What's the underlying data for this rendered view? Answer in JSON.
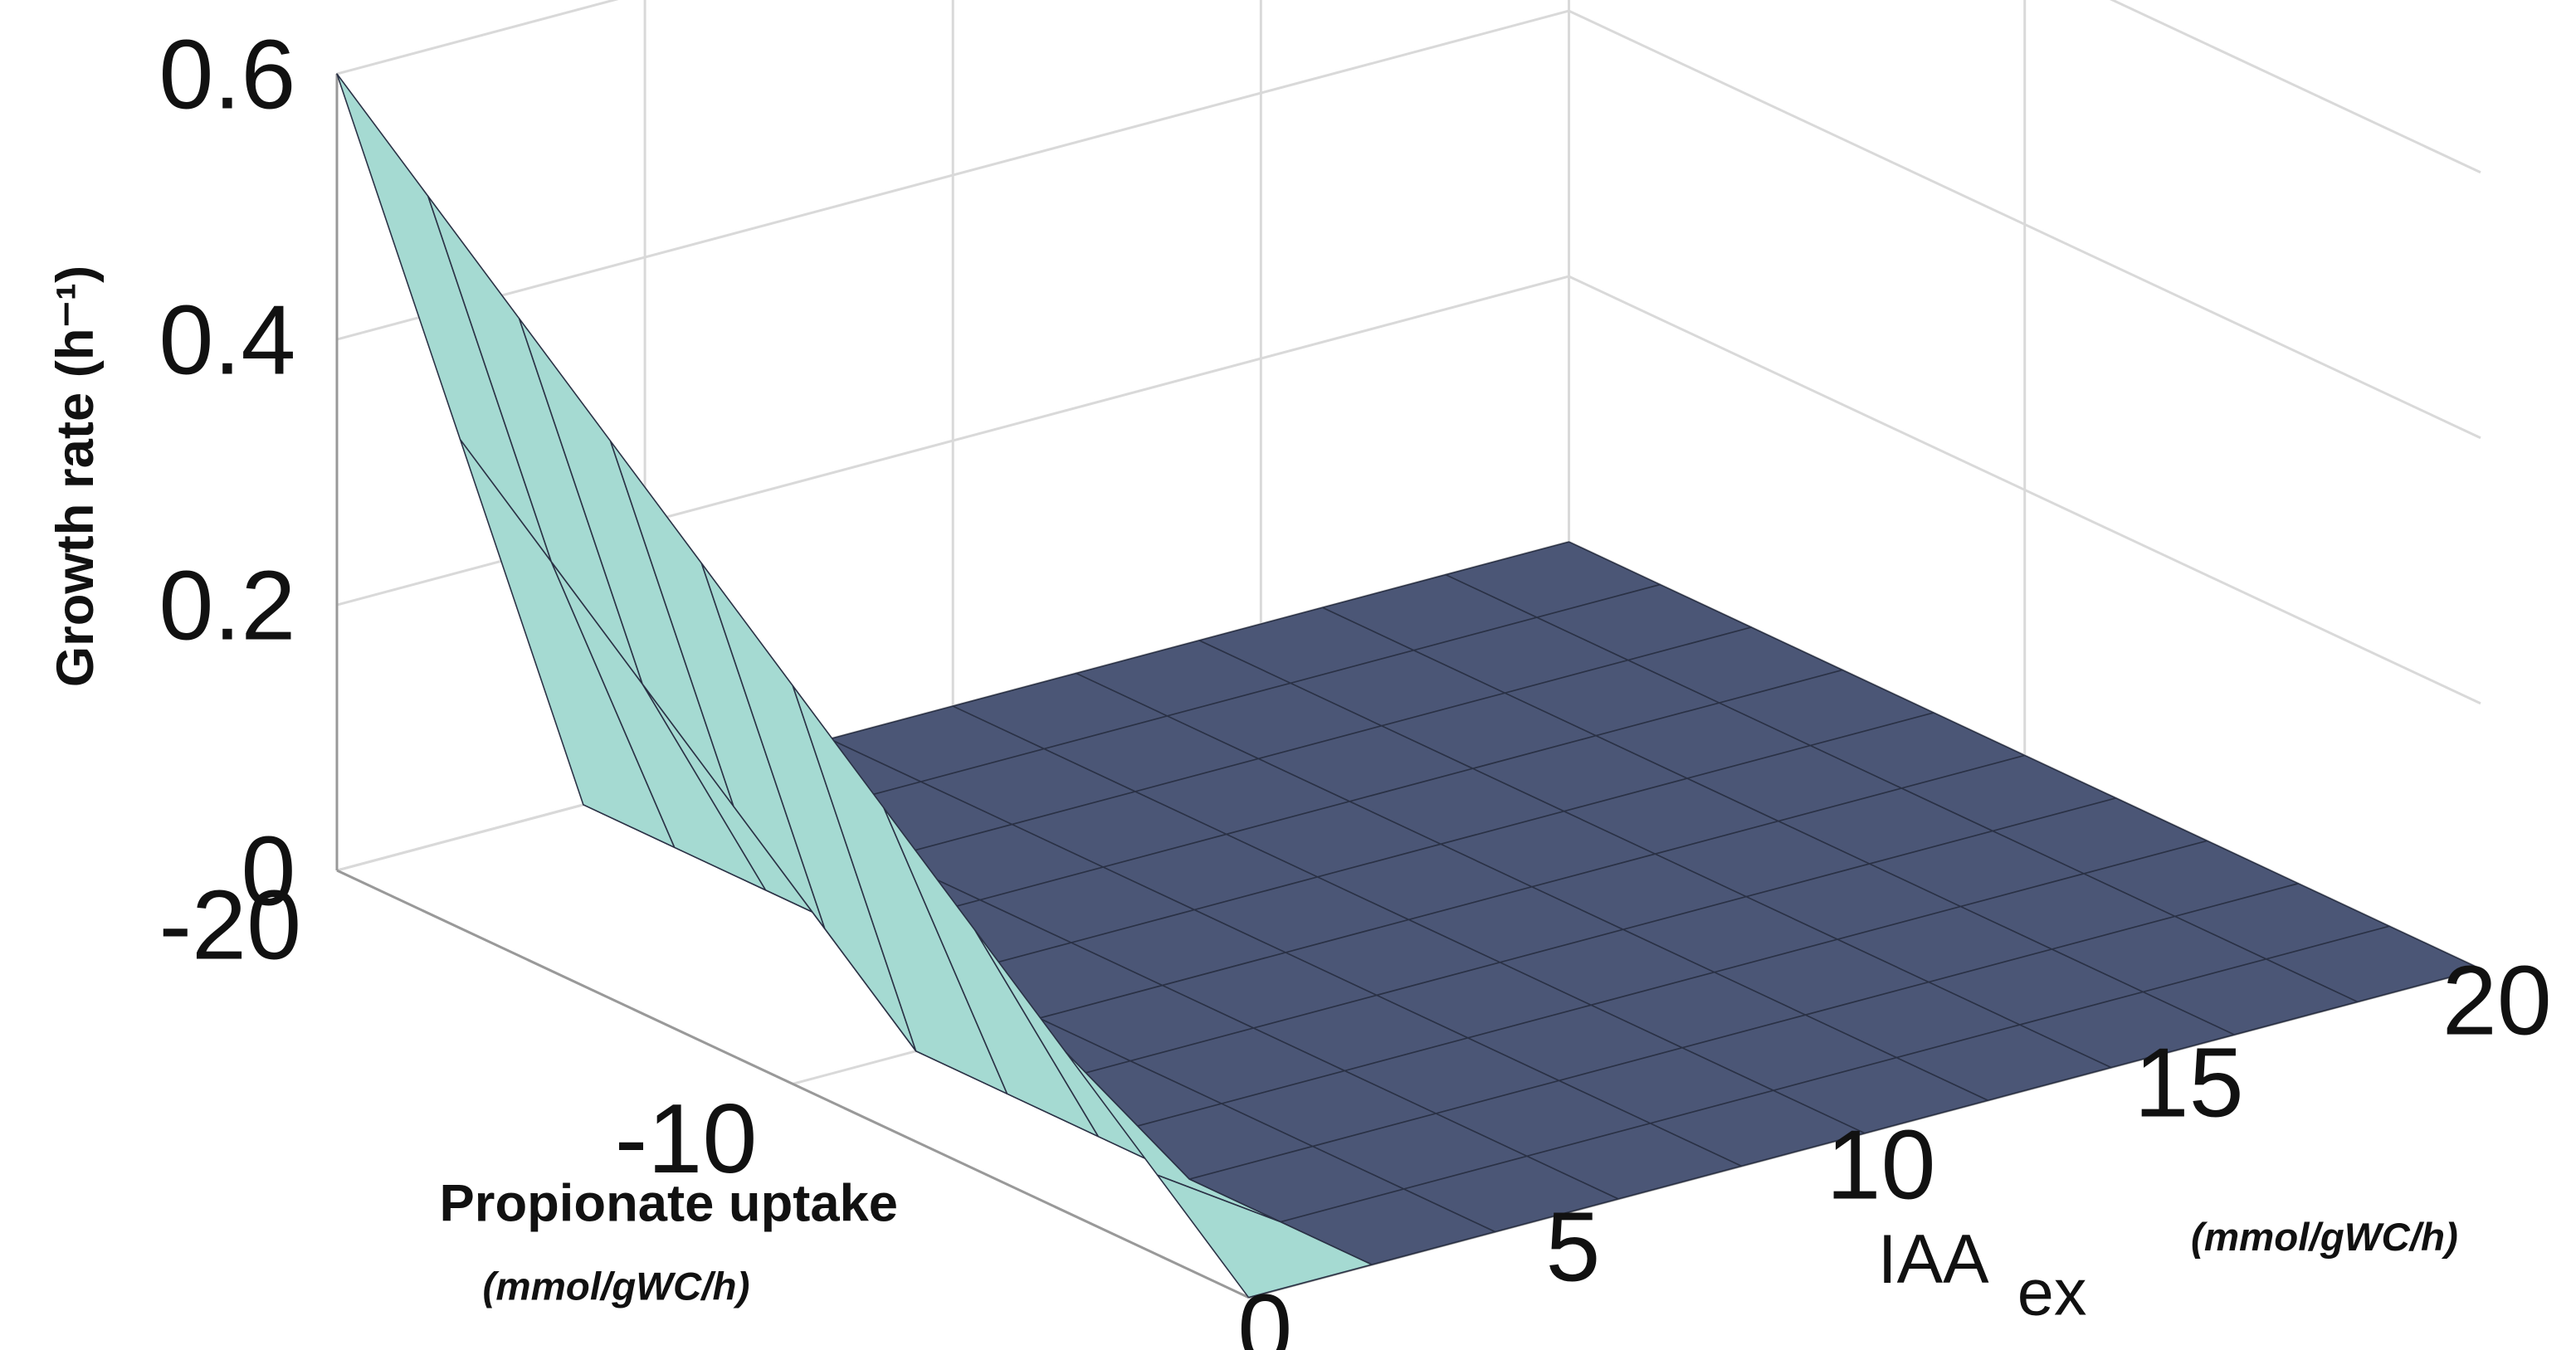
{
  "chart_data": {
    "type": "surface",
    "zlabel": "Growth rate (h⁻¹)",
    "ylabel": "Propionate uptake",
    "ylabel_unit": "(mmol/gWC/h)",
    "xlabel": "IAA",
    "xlabel_sub": "ex",
    "xlabel_unit": "(mmol/gWC/h)",
    "x": [
      0,
      2,
      4,
      6,
      8,
      10,
      12,
      14,
      16,
      18,
      20
    ],
    "y": [
      -20,
      -18,
      -16,
      -14,
      -12,
      -10,
      -8,
      -6,
      -4,
      -2,
      0
    ],
    "z": [
      [
        0.6,
        0.3,
        0,
        0,
        0,
        0,
        0,
        0,
        0,
        0,
        0
      ],
      [
        0.54,
        0.24,
        0,
        0,
        0,
        0,
        0,
        0,
        0,
        0,
        0
      ],
      [
        0.48,
        0.18,
        0,
        0,
        0,
        0,
        0,
        0,
        0,
        0,
        0
      ],
      [
        0.42,
        0.12,
        0,
        0,
        0,
        0,
        0,
        0,
        0,
        0,
        0
      ],
      [
        0.36,
        0.06,
        0,
        0,
        0,
        0,
        0,
        0,
        0,
        0,
        0
      ],
      [
        0.3,
        0,
        0,
        0,
        0,
        0,
        0,
        0,
        0,
        0,
        0
      ],
      [
        0.24,
        0,
        0,
        0,
        0,
        0,
        0,
        0,
        0,
        0,
        0
      ],
      [
        0.18,
        0,
        0,
        0,
        0,
        0,
        0,
        0,
        0,
        0,
        0
      ],
      [
        0.12,
        0,
        0,
        0,
        0,
        0,
        0,
        0,
        0,
        0,
        0
      ],
      [
        0.06,
        0,
        0,
        0,
        0,
        0,
        0,
        0,
        0,
        0,
        0
      ],
      [
        0,
        0,
        0,
        0,
        0,
        0,
        0,
        0,
        0,
        0,
        0
      ]
    ],
    "xlim": [
      0,
      20
    ],
    "ylim": [
      -20,
      0
    ],
    "zlim": [
      0,
      0.6
    ],
    "xticks": [
      0,
      5,
      10,
      15,
      20
    ],
    "yticks": [
      -20,
      -10
    ],
    "zticks": [
      0,
      0.2,
      0.4,
      0.6
    ],
    "grid": true,
    "colors": {
      "flat": "#4b5676",
      "slope": "#a5dad2",
      "edge": "#2a3145"
    }
  }
}
